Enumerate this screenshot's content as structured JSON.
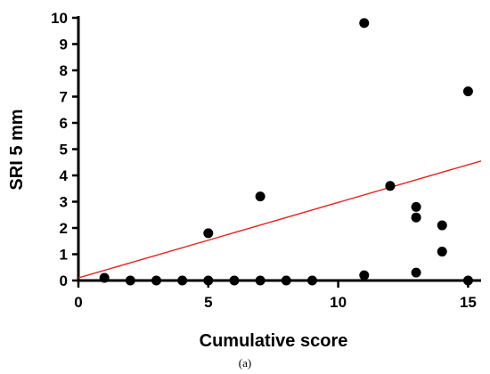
{
  "chart_data": {
    "type": "scatter",
    "xlabel": "Cumulative score",
    "ylabel": "SRI 5 mm",
    "caption": "(a)",
    "xlim": [
      0,
      15.5
    ],
    "ylim": [
      0,
      10
    ],
    "x_ticks": [
      0,
      5,
      10,
      15
    ],
    "y_ticks": [
      0,
      1,
      2,
      3,
      4,
      5,
      6,
      7,
      8,
      9,
      10
    ],
    "grid": false,
    "points": [
      {
        "x": 1,
        "y": 0.1
      },
      {
        "x": 2,
        "y": 0
      },
      {
        "x": 3,
        "y": 0
      },
      {
        "x": 4,
        "y": 0
      },
      {
        "x": 5,
        "y": 0
      },
      {
        "x": 5,
        "y": 1.8
      },
      {
        "x": 6,
        "y": 0
      },
      {
        "x": 7,
        "y": 0
      },
      {
        "x": 7,
        "y": 3.2
      },
      {
        "x": 8,
        "y": 0
      },
      {
        "x": 9,
        "y": 0
      },
      {
        "x": 11,
        "y": 0.2
      },
      {
        "x": 11,
        "y": 9.8
      },
      {
        "x": 12,
        "y": 3.6
      },
      {
        "x": 13,
        "y": 0.3
      },
      {
        "x": 13,
        "y": 2.4
      },
      {
        "x": 13,
        "y": 2.8
      },
      {
        "x": 14,
        "y": 1.1
      },
      {
        "x": 14,
        "y": 2.1
      },
      {
        "x": 15,
        "y": 0
      },
      {
        "x": 15,
        "y": 7.2
      }
    ],
    "trendline": {
      "color": "#e8201c",
      "points": [
        {
          "x": 0,
          "y": 0.1
        },
        {
          "x": 15.5,
          "y": 4.55
        }
      ]
    },
    "point_color": "#000000"
  }
}
